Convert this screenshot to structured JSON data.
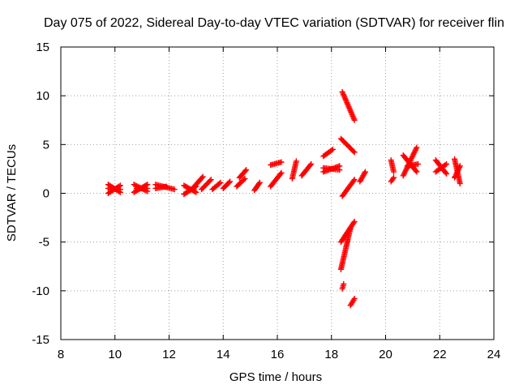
{
  "chart_data": {
    "type": "scatter",
    "title": "Day 075 of 2022, Sidereal Day-to-day VTEC variation (SDTVAR) for receiver flin",
    "xlabel": "GPS time / hours",
    "ylabel": "SDTVAR / TECUs",
    "xlim": [
      8,
      24
    ],
    "ylim": [
      -15,
      15
    ],
    "xticks": [
      8,
      10,
      12,
      14,
      16,
      18,
      20,
      22,
      24
    ],
    "yticks": [
      -15,
      -10,
      -5,
      0,
      5,
      10,
      15
    ],
    "grid": true,
    "marker": "+",
    "marker_color": "#ff0000",
    "series": [
      {
        "name": "SDTVAR",
        "segments": [
          {
            "x": [
              9.75,
              10.2
            ],
            "y": [
              0.0,
              0.8
            ]
          },
          {
            "x": [
              9.75,
              10.2
            ],
            "y": [
              0.9,
              0.1
            ]
          },
          {
            "x": [
              9.75,
              10.2
            ],
            "y": [
              0.5,
              0.4
            ]
          },
          {
            "x": [
              10.7,
              11.2
            ],
            "y": [
              0.1,
              0.9
            ]
          },
          {
            "x": [
              10.7,
              11.2
            ],
            "y": [
              0.9,
              0.2
            ]
          },
          {
            "x": [
              10.8,
              11.2
            ],
            "y": [
              0.5,
              0.5
            ]
          },
          {
            "x": [
              11.5,
              12.2
            ],
            "y": [
              0.9,
              0.4
            ]
          },
          {
            "x": [
              11.5,
              11.9
            ],
            "y": [
              0.5,
              0.7
            ]
          },
          {
            "x": [
              12.55,
              13.0
            ],
            "y": [
              -0.1,
              0.7
            ]
          },
          {
            "x": [
              12.55,
              13.0
            ],
            "y": [
              0.8,
              0.1
            ]
          },
          {
            "x": [
              12.9,
              13.25
            ],
            "y": [
              0.6,
              1.7
            ]
          },
          {
            "x": [
              13.2,
              13.55
            ],
            "y": [
              0.4,
              1.4
            ]
          },
          {
            "x": [
              13.6,
              13.9
            ],
            "y": [
              0.4,
              1.1
            ]
          },
          {
            "x": [
              14.0,
              14.25
            ],
            "y": [
              0.5,
              1.2
            ]
          },
          {
            "x": [
              14.5,
              14.8
            ],
            "y": [
              0.7,
              1.5
            ]
          },
          {
            "x": [
              14.6,
              14.85
            ],
            "y": [
              1.6,
              2.4
            ]
          },
          {
            "x": [
              15.15,
              15.35
            ],
            "y": [
              0.3,
              1.1
            ]
          },
          {
            "x": [
              15.75,
              16.15
            ],
            "y": [
              2.9,
              3.2
            ]
          },
          {
            "x": [
              15.75,
              16.15
            ],
            "y": [
              0.7,
              2.1
            ]
          },
          {
            "x": [
              16.55,
              16.7
            ],
            "y": [
              1.5,
              3.3
            ]
          },
          {
            "x": [
              16.9,
              17.25
            ],
            "y": [
              1.8,
              3.0
            ]
          },
          {
            "x": [
              17.7,
              18.05
            ],
            "y": [
              3.8,
              4.5
            ]
          },
          {
            "x": [
              17.7,
              18.3
            ],
            "y": [
              2.6,
              2.4
            ]
          },
          {
            "x": [
              17.7,
              18.3
            ],
            "y": [
              2.2,
              2.8
            ]
          },
          {
            "x": [
              18.4,
              18.85
            ],
            "y": [
              10.4,
              7.5
            ]
          },
          {
            "x": [
              18.35,
              18.85
            ],
            "y": [
              5.6,
              4.2
            ]
          },
          {
            "x": [
              18.4,
              18.85
            ],
            "y": [
              -0.3,
              1.4
            ]
          },
          {
            "x": [
              18.35,
              18.85
            ],
            "y": [
              -5.0,
              -2.9
            ]
          },
          {
            "x": [
              18.35,
              18.7
            ],
            "y": [
              -7.8,
              -3.6
            ]
          },
          {
            "x": [
              18.4,
              18.45
            ],
            "y": [
              -9.8,
              -9.3
            ]
          },
          {
            "x": [
              18.7,
              18.85
            ],
            "y": [
              -11.5,
              -10.8
            ]
          },
          {
            "x": [
              19.05,
              19.25
            ],
            "y": [
              1.2,
              2.2
            ]
          },
          {
            "x": [
              20.2,
              20.3
            ],
            "y": [
              3.4,
              2.2
            ]
          },
          {
            "x": [
              20.2,
              20.3
            ],
            "y": [
              1.2,
              1.6
            ]
          },
          {
            "x": [
              20.65,
              21.15
            ],
            "y": [
              1.8,
              4.7
            ]
          },
          {
            "x": [
              20.65,
              21.15
            ],
            "y": [
              3.9,
              2.2
            ]
          },
          {
            "x": [
              20.8,
              21.2
            ],
            "y": [
              2.8,
              3.0
            ]
          },
          {
            "x": [
              21.85,
              22.25
            ],
            "y": [
              3.4,
              2.0
            ]
          },
          {
            "x": [
              21.85,
              22.25
            ],
            "y": [
              2.2,
              3.0
            ]
          },
          {
            "x": [
              22.55,
              22.75
            ],
            "y": [
              3.5,
              1.0
            ]
          },
          {
            "x": [
              22.55,
              22.75
            ],
            "y": [
              1.6,
              2.8
            ]
          }
        ]
      }
    ]
  }
}
